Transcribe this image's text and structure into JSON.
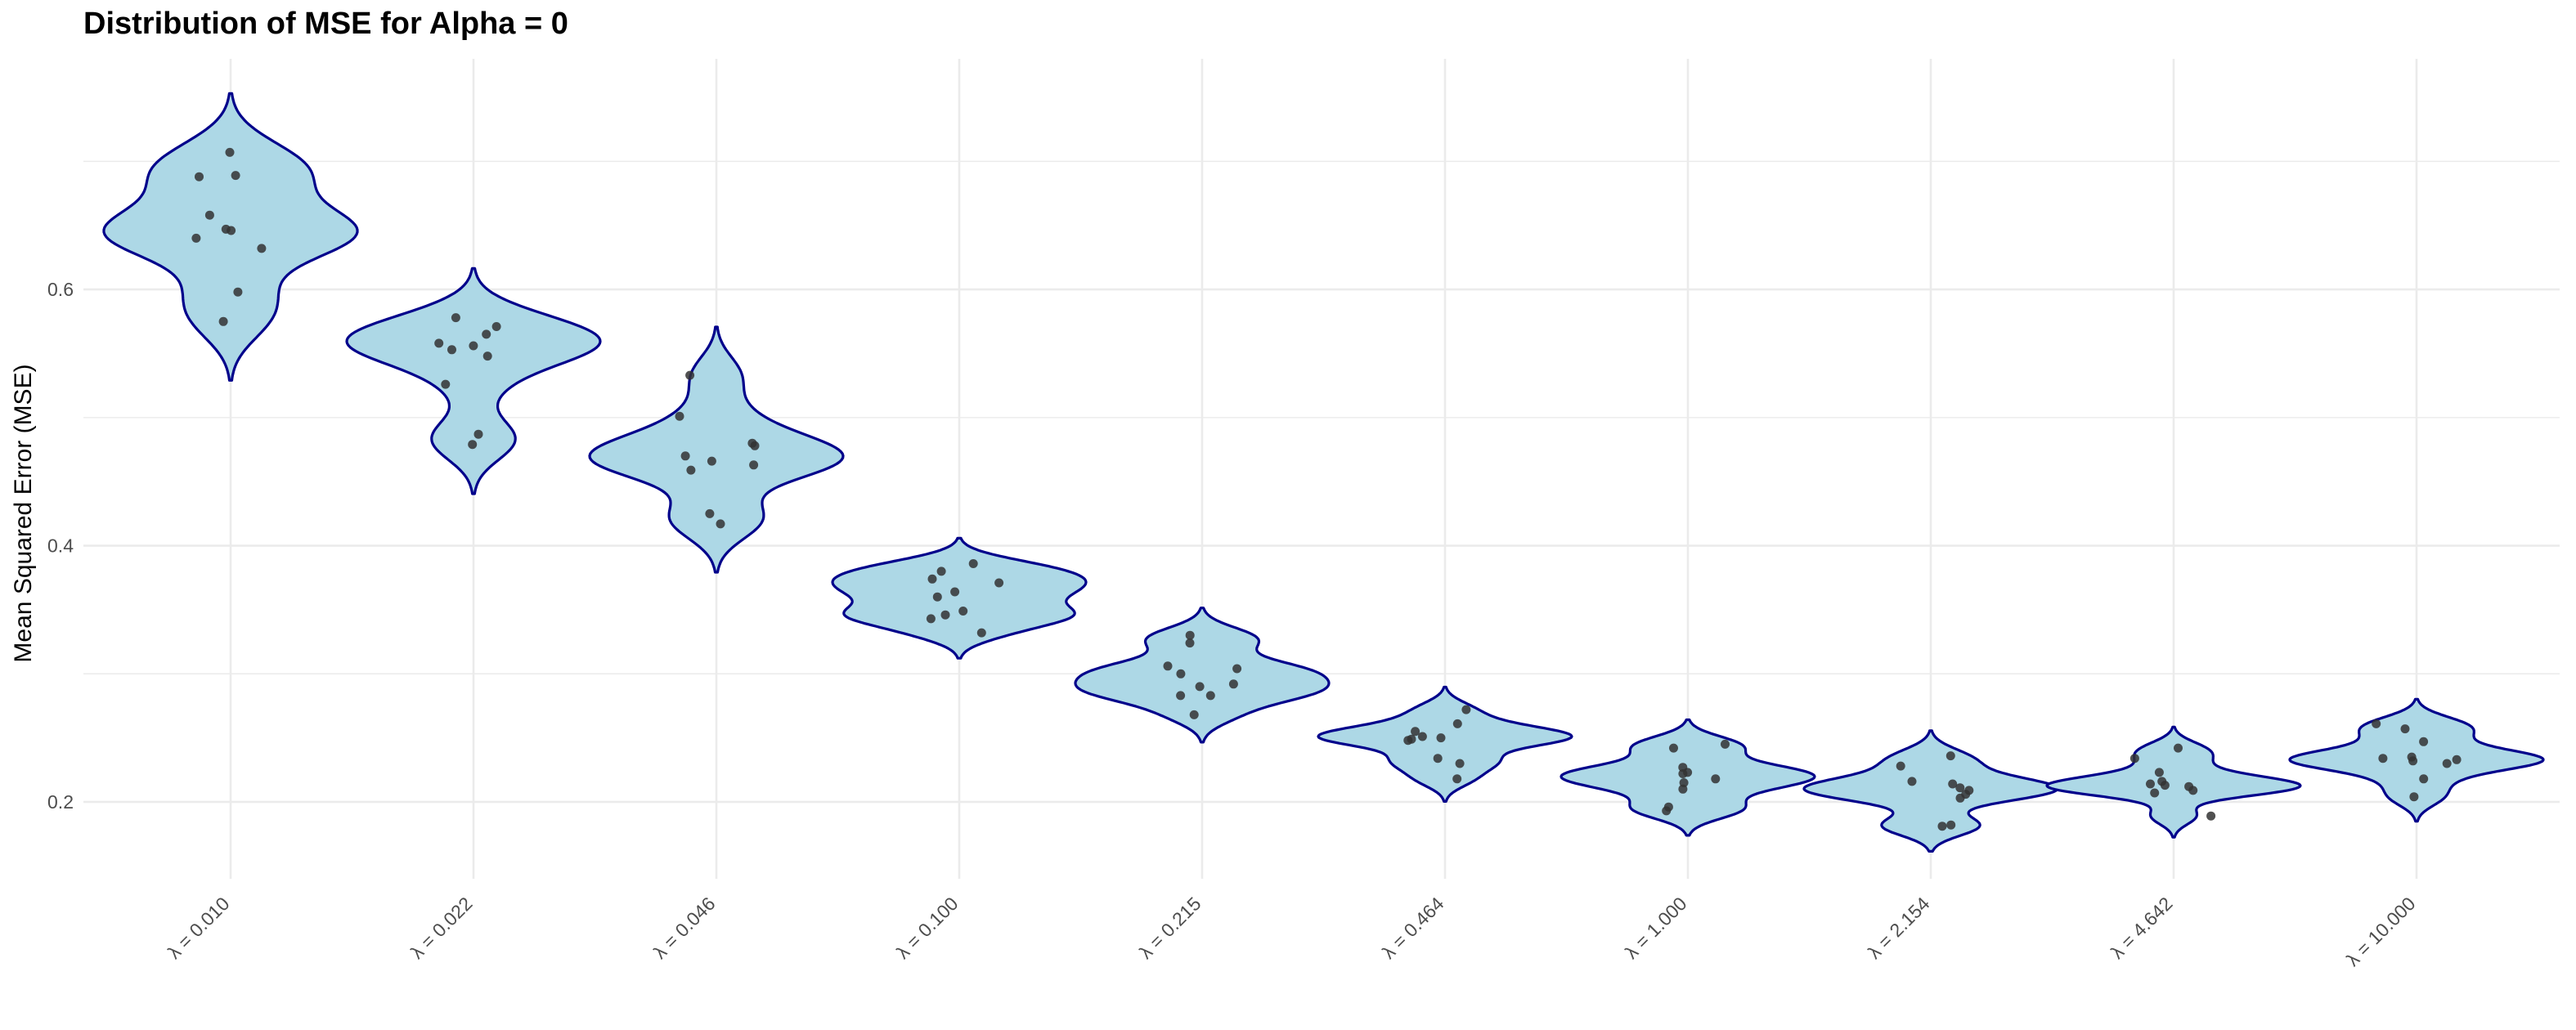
{
  "chart_data": {
    "type": "violin",
    "title": "Distribution of MSE for Alpha = 0",
    "xlabel": "",
    "ylabel": "Mean Squared Error (MSE)",
    "ylim": [
      0.14,
      0.78
    ],
    "yticks": [
      0.2,
      0.4,
      0.6
    ],
    "ytick_labels": [
      "0.2",
      "0.4",
      "0.6"
    ],
    "grid": true,
    "legend": "none",
    "colors": {
      "violin_fill": "#add8e6",
      "violin_outline": "#00008b",
      "points": "#333333",
      "grid": "#ebebeb"
    },
    "categories": [
      "λ = 0.010",
      "λ = 0.022",
      "λ = 0.046",
      "λ = 0.100",
      "λ = 0.215",
      "λ = 0.464",
      "λ = 1.000",
      "λ = 2.154",
      "λ = 4.642",
      "λ = 10.000"
    ],
    "groups": [
      {
        "label": "λ = 0.010",
        "points": [
          0.707,
          0.689,
          0.688,
          0.658,
          0.647,
          0.646,
          0.64,
          0.632,
          0.598,
          0.575
        ]
      },
      {
        "label": "λ = 0.022",
        "points": [
          0.578,
          0.571,
          0.565,
          0.558,
          0.556,
          0.553,
          0.548,
          0.526,
          0.487,
          0.479
        ]
      },
      {
        "label": "λ = 0.046",
        "points": [
          0.533,
          0.501,
          0.48,
          0.478,
          0.47,
          0.466,
          0.463,
          0.459,
          0.425,
          0.417
        ]
      },
      {
        "label": "λ = 0.100",
        "points": [
          0.386,
          0.38,
          0.374,
          0.371,
          0.364,
          0.36,
          0.349,
          0.346,
          0.343,
          0.332
        ]
      },
      {
        "label": "λ = 0.215",
        "points": [
          0.33,
          0.324,
          0.306,
          0.304,
          0.3,
          0.292,
          0.29,
          0.283,
          0.283,
          0.268
        ]
      },
      {
        "label": "λ = 0.464",
        "points": [
          0.272,
          0.261,
          0.255,
          0.251,
          0.25,
          0.249,
          0.248,
          0.234,
          0.23,
          0.218
        ]
      },
      {
        "label": "λ = 1.000",
        "points": [
          0.245,
          0.242,
          0.227,
          0.223,
          0.222,
          0.218,
          0.215,
          0.21,
          0.196,
          0.193
        ]
      },
      {
        "label": "λ = 2.154",
        "points": [
          0.236,
          0.228,
          0.216,
          0.214,
          0.211,
          0.209,
          0.206,
          0.203,
          0.182,
          0.181
        ]
      },
      {
        "label": "λ = 4.642",
        "points": [
          0.242,
          0.234,
          0.223,
          0.216,
          0.214,
          0.213,
          0.212,
          0.209,
          0.207,
          0.189
        ]
      },
      {
        "label": "λ = 10.000",
        "points": [
          0.261,
          0.257,
          0.247,
          0.235,
          0.234,
          0.233,
          0.232,
          0.23,
          0.218,
          0.204
        ]
      }
    ]
  }
}
